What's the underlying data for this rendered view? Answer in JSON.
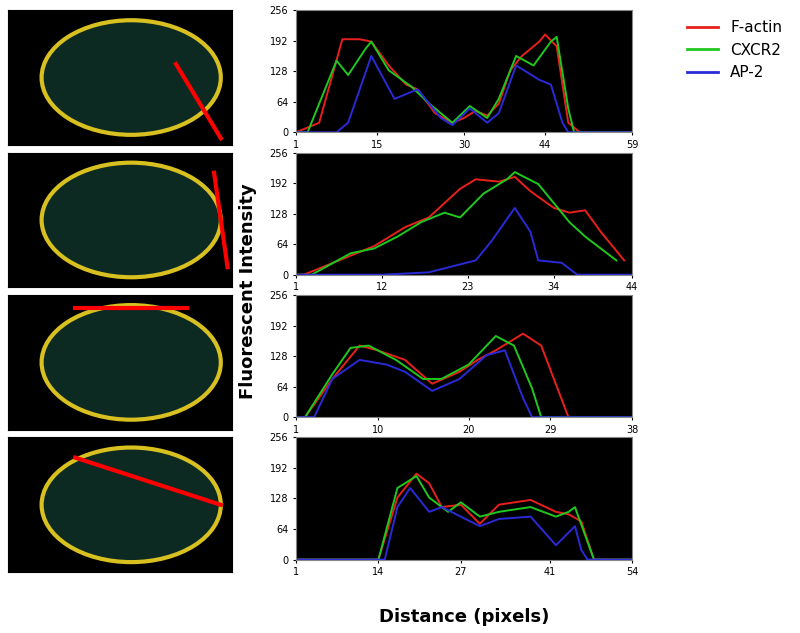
{
  "x_label": "Distance (pixels)",
  "y_label": "Fluorescent Intensity",
  "legend": "upper right",
  "chart_data": [
    {
      "type": "line",
      "xlim": [
        1,
        59
      ],
      "xticks": [
        1,
        15,
        30,
        44,
        59
      ],
      "ylim": [
        0,
        256
      ],
      "yticks": [
        0,
        64,
        128,
        192,
        256
      ],
      "series": [
        {
          "name": "F-actin",
          "color": "#e8201c",
          "x": [
            1,
            5,
            9,
            12,
            14,
            17,
            20,
            22,
            25,
            28,
            30,
            32,
            34,
            36,
            38,
            40,
            43,
            44,
            46,
            48,
            50,
            59
          ],
          "values": [
            0,
            20,
            195,
            195,
            190,
            140,
            100,
            90,
            40,
            20,
            30,
            45,
            35,
            60,
            130,
            160,
            190,
            205,
            180,
            20,
            0,
            0
          ]
        },
        {
          "name": "CXCR2",
          "color": "#1ec81e",
          "x": [
            1,
            3,
            8,
            10,
            13,
            14,
            17,
            21,
            24,
            28,
            31,
            34,
            36,
            39,
            42,
            45,
            46,
            48,
            49,
            59
          ],
          "values": [
            0,
            0,
            150,
            120,
            175,
            190,
            130,
            95,
            60,
            20,
            55,
            30,
            70,
            160,
            140,
            190,
            200,
            50,
            0,
            0
          ]
        },
        {
          "name": "AP-2",
          "color": "#2a2ad8",
          "x": [
            1,
            8,
            10,
            14,
            18,
            22,
            26,
            28,
            31,
            34,
            36,
            39,
            43,
            45,
            47,
            48,
            59
          ],
          "values": [
            0,
            0,
            20,
            160,
            70,
            90,
            30,
            15,
            50,
            20,
            40,
            140,
            110,
            100,
            20,
            0,
            0
          ]
        }
      ]
    },
    {
      "type": "line",
      "xlim": [
        1,
        44
      ],
      "xticks": [
        1,
        12,
        23,
        34,
        44
      ],
      "ylim": [
        0,
        256
      ],
      "yticks": [
        0,
        64,
        128,
        192,
        256
      ],
      "series": [
        {
          "name": "F-actin",
          "color": "#e8201c",
          "x": [
            1,
            2,
            8,
            11,
            15,
            18,
            22,
            24,
            27,
            29,
            31,
            34,
            36,
            38,
            40,
            43
          ],
          "values": [
            0,
            0,
            40,
            60,
            100,
            120,
            180,
            200,
            195,
            205,
            175,
            140,
            130,
            135,
            90,
            30
          ]
        },
        {
          "name": "CXCR2",
          "color": "#1ec81e",
          "x": [
            1,
            3,
            8,
            11,
            14,
            17,
            20,
            22,
            25,
            28,
            29,
            32,
            34,
            36,
            38,
            42
          ],
          "values": [
            0,
            0,
            45,
            55,
            80,
            110,
            130,
            120,
            170,
            200,
            215,
            190,
            150,
            110,
            80,
            30
          ]
        },
        {
          "name": "AP-2",
          "color": "#2a2ad8",
          "x": [
            1,
            12,
            18,
            24,
            26,
            29,
            31,
            32,
            35,
            37,
            44
          ],
          "values": [
            0,
            0,
            5,
            30,
            70,
            140,
            90,
            30,
            25,
            0,
            0
          ]
        }
      ]
    },
    {
      "type": "line",
      "xlim": [
        1,
        38
      ],
      "xticks": [
        1,
        10,
        20,
        29,
        38
      ],
      "ylim": [
        0,
        256
      ],
      "yticks": [
        0,
        64,
        128,
        192,
        256
      ],
      "series": [
        {
          "name": "F-actin",
          "color": "#e8201c",
          "x": [
            1,
            2,
            5,
            8,
            10,
            13,
            16,
            19,
            21,
            23,
            26,
            28,
            30,
            31,
            38
          ],
          "values": [
            0,
            0,
            80,
            150,
            140,
            120,
            70,
            95,
            120,
            140,
            175,
            150,
            50,
            0,
            0
          ]
        },
        {
          "name": "CXCR2",
          "color": "#1ec81e",
          "x": [
            1,
            2,
            5,
            7,
            9,
            12,
            15,
            17,
            20,
            23,
            25,
            27,
            28,
            38
          ],
          "values": [
            0,
            0,
            90,
            145,
            150,
            120,
            80,
            80,
            110,
            170,
            150,
            60,
            0,
            0
          ]
        },
        {
          "name": "AP-2",
          "color": "#2a2ad8",
          "x": [
            1,
            3,
            5,
            8,
            11,
            13,
            16,
            19,
            22,
            24,
            26,
            27,
            38
          ],
          "values": [
            0,
            0,
            80,
            120,
            110,
            95,
            55,
            80,
            130,
            140,
            40,
            0,
            0
          ]
        }
      ]
    },
    {
      "type": "line",
      "xlim": [
        1,
        54
      ],
      "xticks": [
        1,
        14,
        27,
        41,
        54
      ],
      "ylim": [
        0,
        256
      ],
      "yticks": [
        0,
        64,
        128,
        192,
        256
      ],
      "series": [
        {
          "name": "F-actin",
          "color": "#e8201c",
          "x": [
            1,
            14,
            17,
            20,
            22,
            24,
            27,
            30,
            33,
            38,
            42,
            44,
            46,
            48,
            54
          ],
          "values": [
            0,
            0,
            130,
            180,
            160,
            110,
            115,
            75,
            115,
            125,
            100,
            95,
            80,
            0,
            0
          ]
        },
        {
          "name": "CXCR2",
          "color": "#1ec81e",
          "x": [
            1,
            14,
            17,
            20,
            22,
            25,
            27,
            30,
            33,
            38,
            42,
            44,
            45,
            48,
            54
          ],
          "values": [
            0,
            0,
            150,
            175,
            130,
            100,
            120,
            90,
            100,
            110,
            90,
            100,
            110,
            0,
            0
          ]
        },
        {
          "name": "AP-2",
          "color": "#2a2ad8",
          "x": [
            1,
            15,
            17,
            19,
            22,
            24,
            27,
            30,
            33,
            38,
            42,
            45,
            46,
            47,
            54
          ],
          "values": [
            0,
            0,
            110,
            150,
            100,
            110,
            90,
            70,
            85,
            90,
            30,
            70,
            20,
            0,
            0
          ]
        }
      ]
    }
  ]
}
